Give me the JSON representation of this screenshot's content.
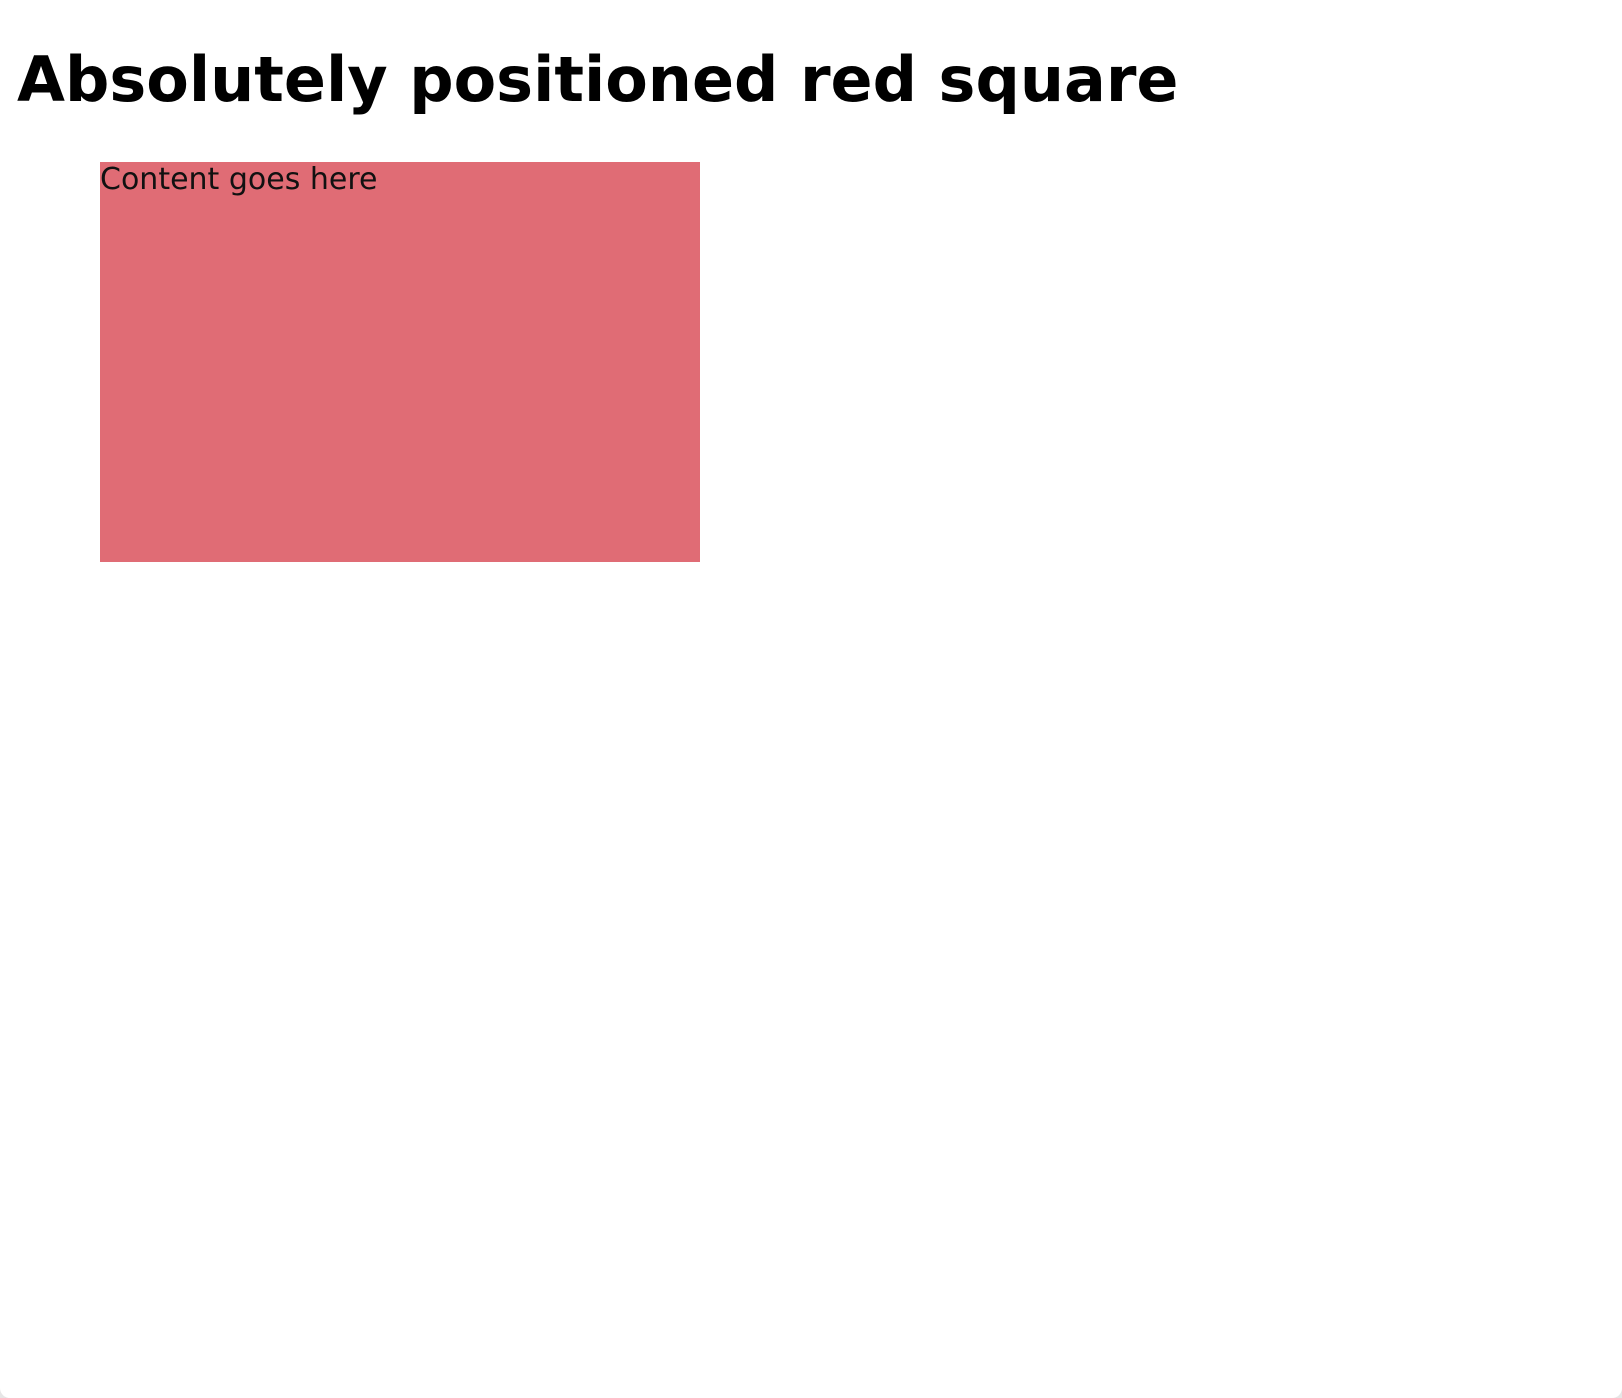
{
  "page": {
    "heading": "Absolutely positioned red square"
  },
  "square": {
    "content": "Content goes here",
    "color": "#e06c75"
  }
}
